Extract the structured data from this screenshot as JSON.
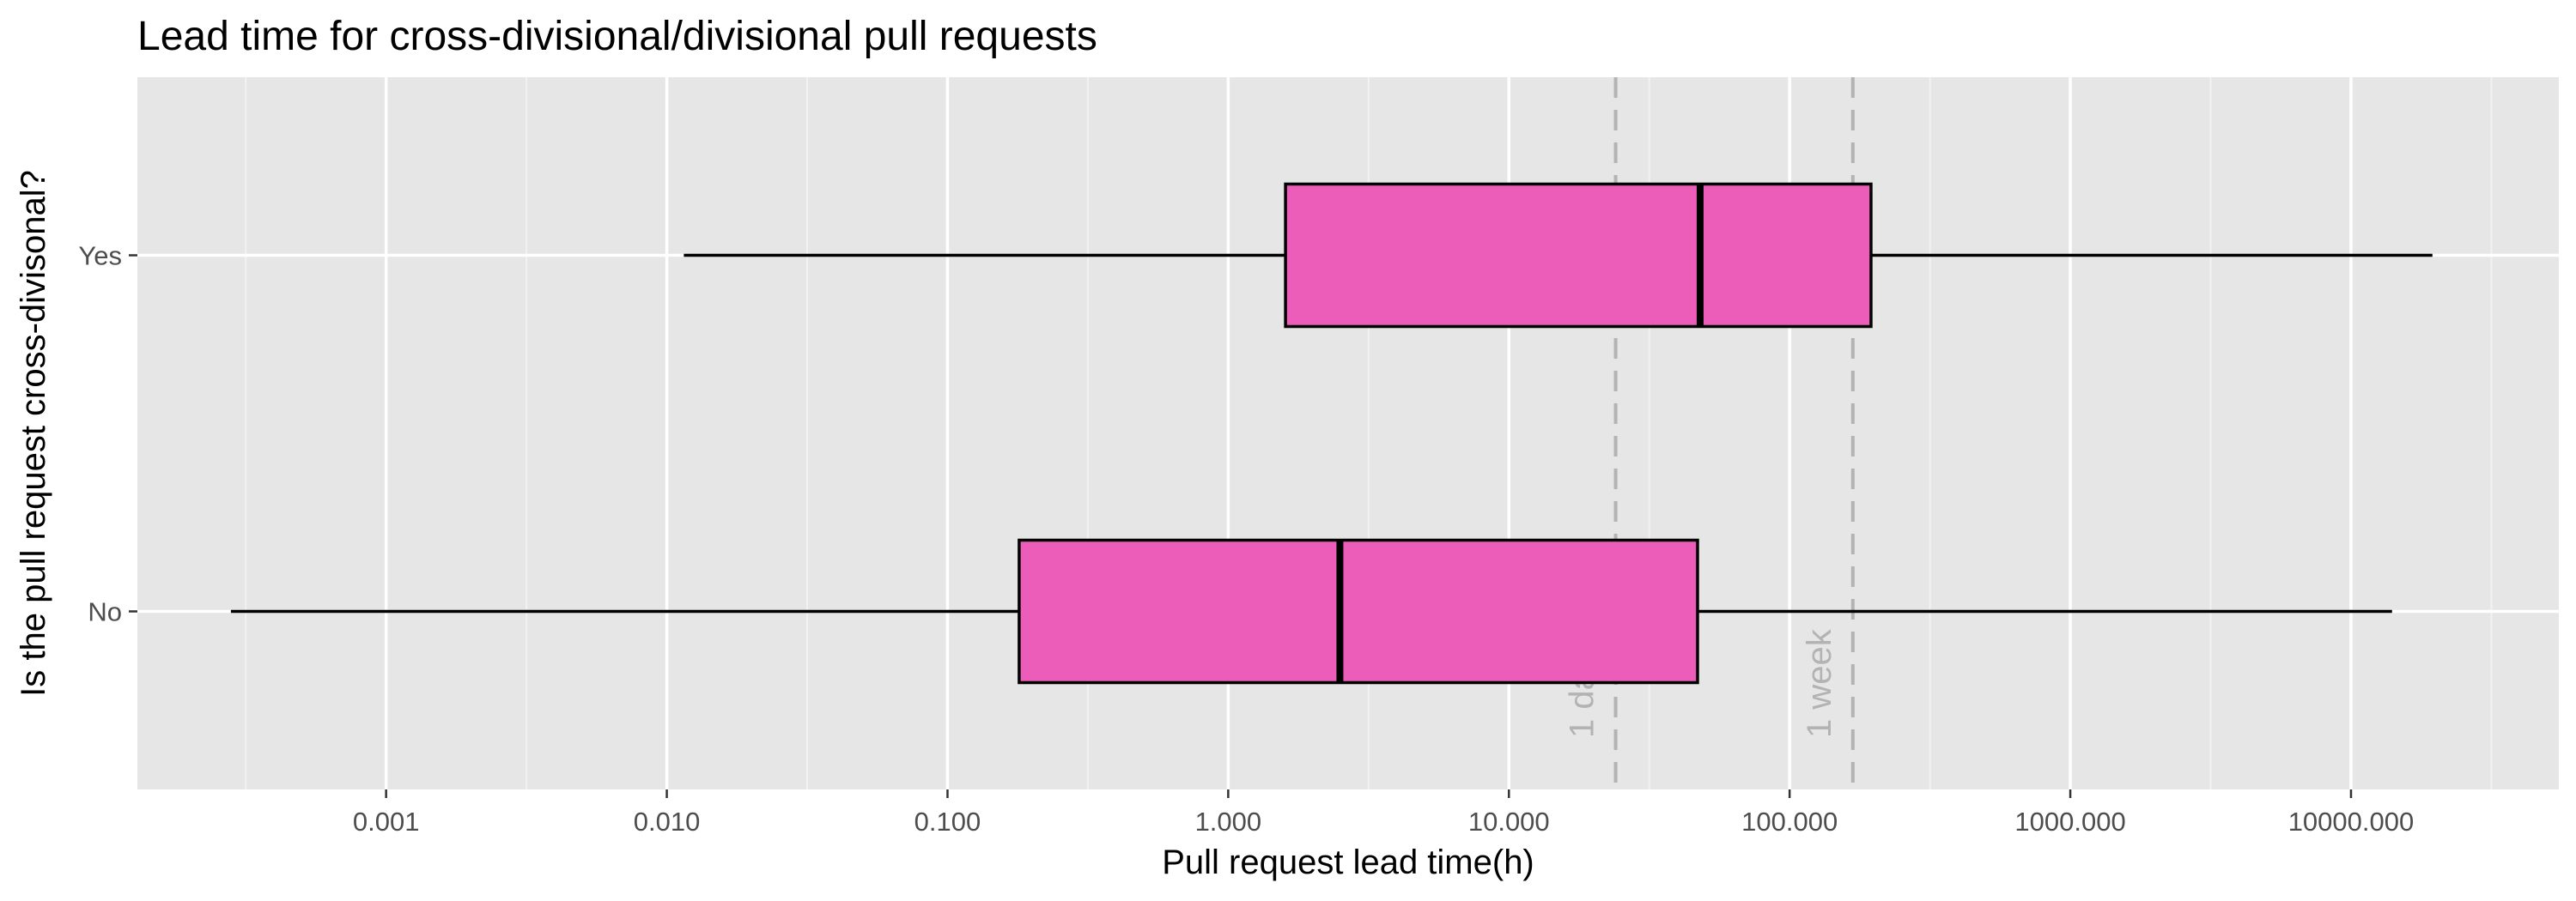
{
  "chart_data": {
    "type": "boxplot",
    "orientation": "horizontal",
    "title": "Lead time for cross-divisional/divisional pull requests",
    "xlabel": "Pull request lead time(h)",
    "ylabel": "Is the pull request cross-divisonal?",
    "x_scale": "log10",
    "xlim": [
      0.00013,
      55000
    ],
    "x_ticks": [
      0.001,
      0.01,
      0.1,
      1,
      10,
      100,
      1000,
      10000
    ],
    "x_tick_labels": [
      "0.001",
      "0.010",
      "0.100",
      "1.000",
      "10.000",
      "100.000",
      "1000.000",
      "10000.000"
    ],
    "categories": [
      "No",
      "Yes"
    ],
    "boxes": [
      {
        "category": "No",
        "min": 0.00028,
        "q1": 0.18,
        "median": 2.5,
        "q3": 47,
        "max": 14000
      },
      {
        "category": "Yes",
        "min": 0.0115,
        "q1": 1.6,
        "median": 48,
        "q3": 195,
        "max": 19500
      }
    ],
    "box_fill": "#EC5DB9",
    "reference_lines": [
      {
        "label": "1 day",
        "value": 24
      },
      {
        "label": "1 week",
        "value": 168
      }
    ],
    "grid": true,
    "legend": "none",
    "panel_background": "#E6E6E6",
    "grid_color": "#FFFFFF",
    "reference_line_color": "#B3B3B3"
  }
}
